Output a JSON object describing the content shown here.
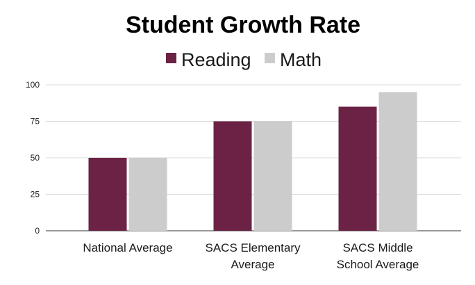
{
  "chart_data": {
    "type": "bar",
    "title": "Student Growth Rate",
    "xlabel": "",
    "ylabel": "",
    "categories": [
      [
        "National Average"
      ],
      [
        "SACS Elementary",
        "Average"
      ],
      [
        "SACS Middle",
        "School Average"
      ]
    ],
    "series": [
      {
        "name": "Reading",
        "color": "#6b2244",
        "values": [
          50,
          75,
          85
        ]
      },
      {
        "name": "Math",
        "color": "#cccccc",
        "values": [
          50,
          75,
          95
        ]
      }
    ],
    "ylim": [
      0,
      100
    ],
    "yticks": [
      "0",
      "25",
      "50",
      "75",
      "100"
    ],
    "ytick_values": [
      0,
      25,
      50,
      75,
      100
    ],
    "grid": true,
    "legend_position": "top-center"
  }
}
